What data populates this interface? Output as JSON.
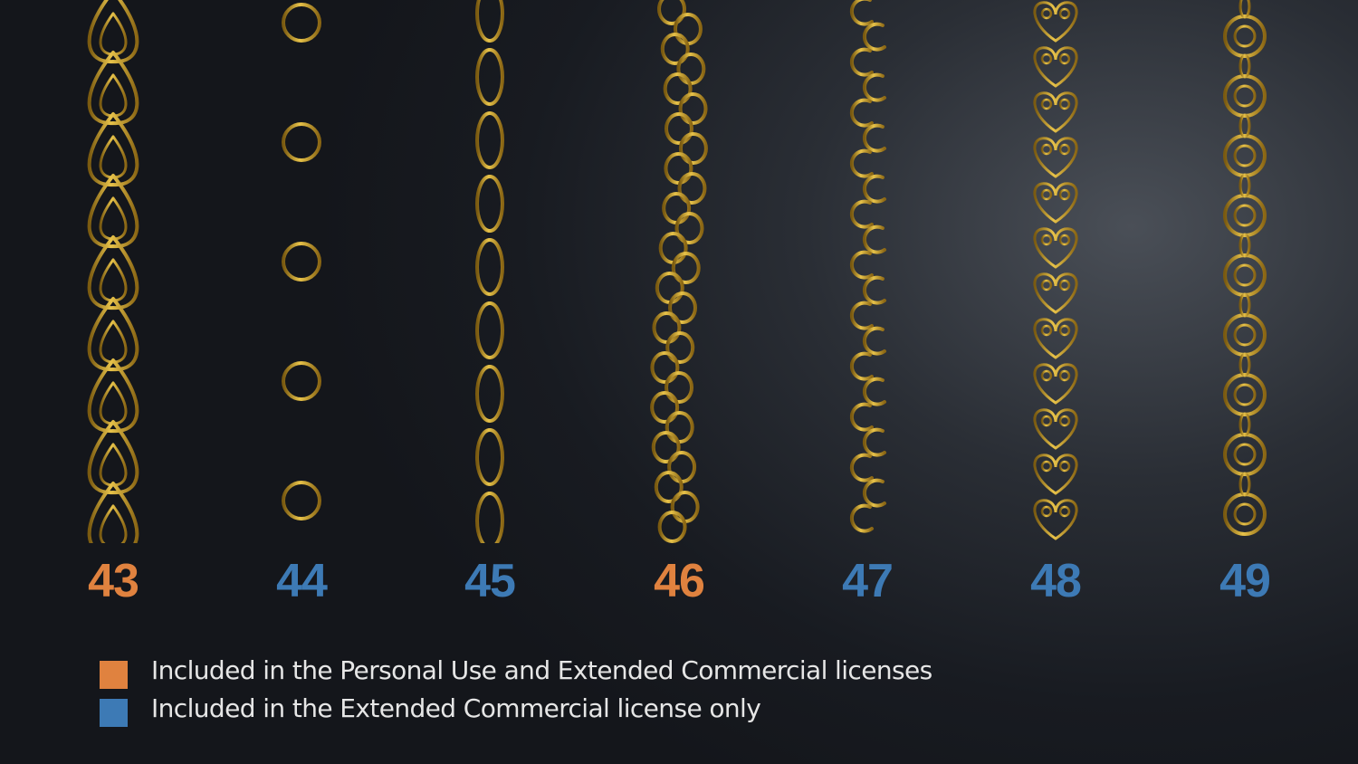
{
  "colors": {
    "personal": "#e0823f",
    "extended": "#3d7ab5",
    "gold": "#c9a227"
  },
  "chains": [
    {
      "number": "43",
      "license": "personal",
      "style": "teardrop"
    },
    {
      "number": "44",
      "license": "extended",
      "style": "ring-coil"
    },
    {
      "number": "45",
      "license": "extended",
      "style": "oval-wrapped"
    },
    {
      "number": "46",
      "license": "personal",
      "style": "twisted-curb"
    },
    {
      "number": "47",
      "license": "extended",
      "style": "s-curl"
    },
    {
      "number": "48",
      "license": "extended",
      "style": "heart"
    },
    {
      "number": "49",
      "license": "extended",
      "style": "spiral-ring"
    }
  ],
  "legend": [
    {
      "label": "Included in the Personal Use and Extended Commercial licenses",
      "license": "personal"
    },
    {
      "label": "Included in the Extended Commercial license only",
      "license": "extended"
    }
  ]
}
